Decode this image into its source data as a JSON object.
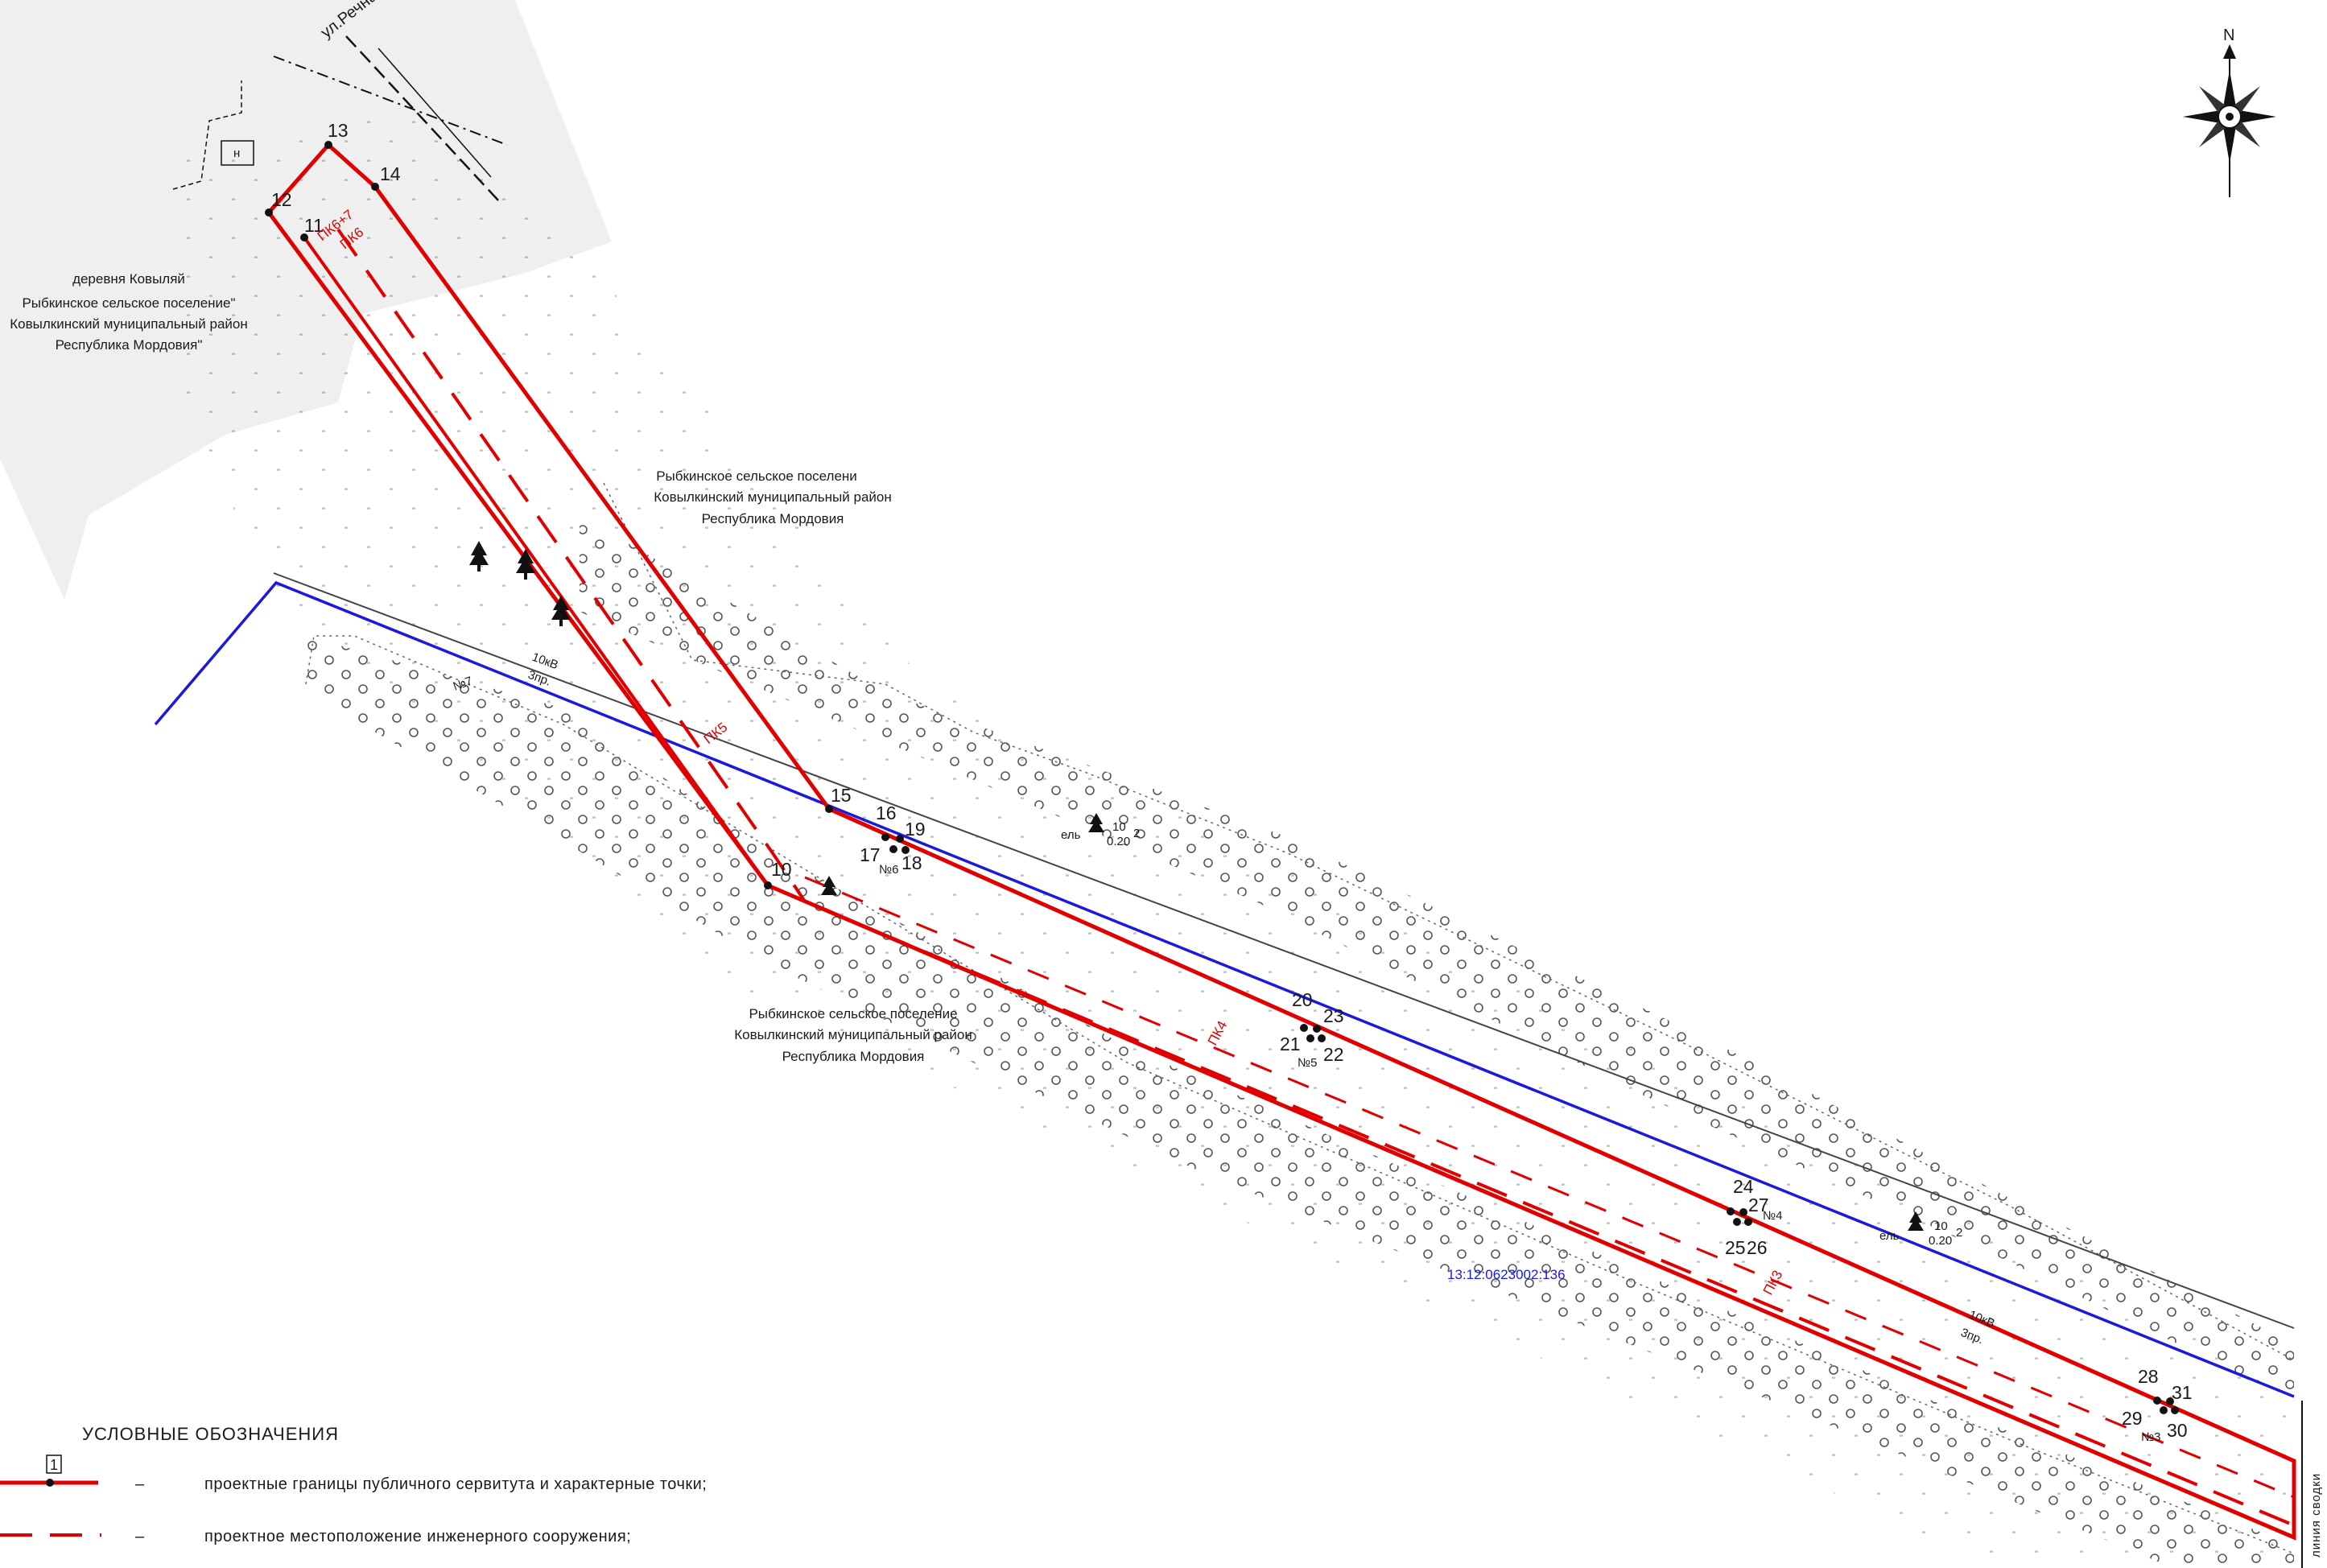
{
  "colors": {
    "boundary": "#e00000",
    "cable": "#1a1adc",
    "settlement_fill": "#efefef",
    "text": "#1a1a1a"
  },
  "map": {
    "street_label": "ул.Речная",
    "village_label": [
      "деревня Ковыляй",
      "Рыбкинское сельское поселение\"",
      "Ковылкинский муниципальный район",
      "Республика Мордовия\""
    ],
    "area_label_top": [
      "Рыбкинское сельское поселени",
      "Ковылкинский муниципальный район",
      "Республика Мордовия"
    ],
    "area_label_bottom": [
      "Рыбкинское сельское поселение",
      "Ковылкинский муниципальный район",
      "Республика Мордовия"
    ],
    "parcel_number": "13:12:0623002:136",
    "power_line_label_1": [
      "10кВ",
      "3пр."
    ],
    "power_line_label_2": [
      "10кВ",
      "3пр."
    ],
    "tree_label_1": [
      "ель",
      "10",
      "0.20",
      "2"
    ],
    "tree_label_2": [
      "ель",
      "10",
      "0.20",
      "2"
    ],
    "house_label": "н",
    "north_label": "N",
    "seam_line_label": "линия сводки",
    "piket_labels": [
      "ПК6+7",
      "ПК6",
      "ПК5",
      "ПК4",
      "ПК3"
    ],
    "pole_labels": [
      "№7",
      "№6",
      "№5",
      "№4",
      "№3"
    ],
    "points": [
      "10",
      "11",
      "12",
      "13",
      "14",
      "15",
      "16",
      "17",
      "18",
      "19",
      "20",
      "21",
      "22",
      "23",
      "24",
      "25",
      "26",
      "27",
      "28",
      "29",
      "30",
      "31"
    ]
  },
  "legend": {
    "title": "УСЛОВНЫЕ ОБОЗНАЧЕНИЯ",
    "badge": "1",
    "items": [
      {
        "dash": "–",
        "text": "проектные границы публичного сервитута и характерные точки;"
      },
      {
        "dash": "–",
        "text": "проектное местоположение инженерного сооружения;"
      }
    ]
  }
}
